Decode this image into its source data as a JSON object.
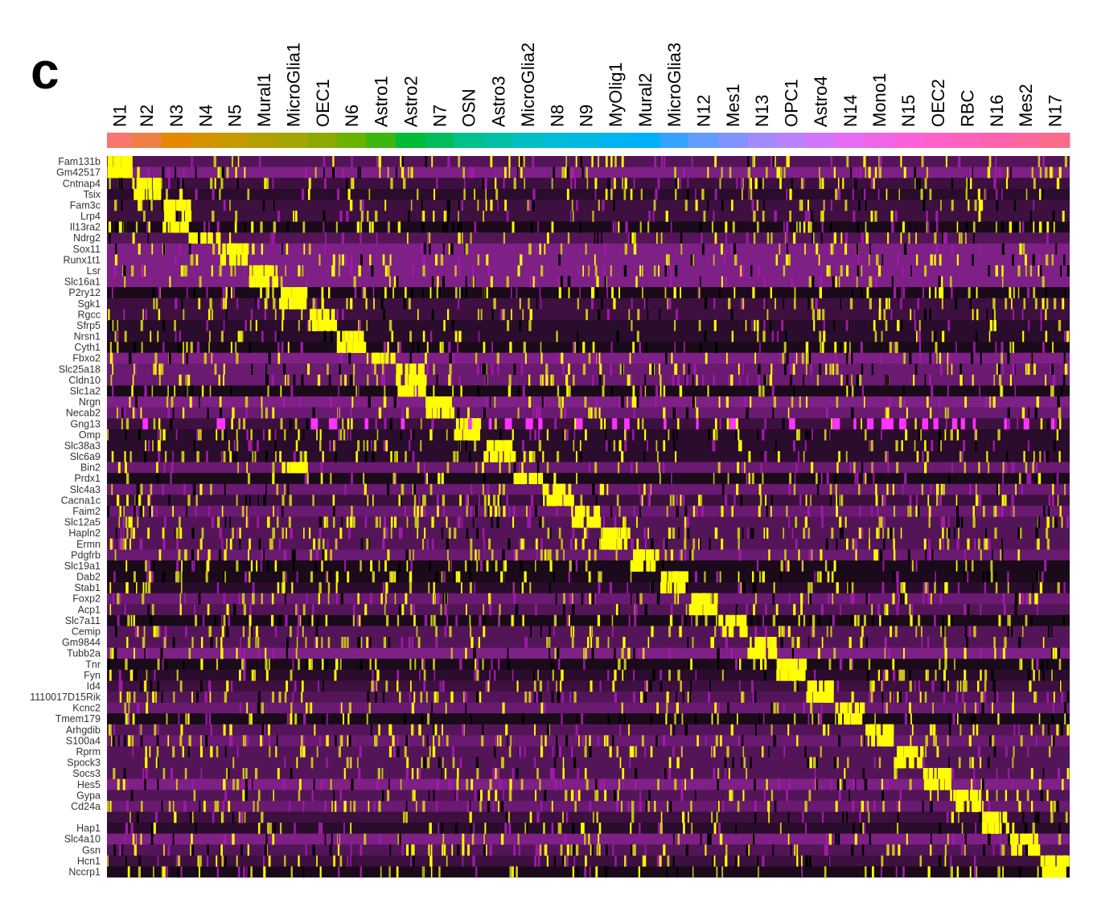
{
  "panel_label": "c",
  "chart_data": {
    "type": "heatmap",
    "title": "",
    "xlabel": "",
    "ylabel": "",
    "legend": "none",
    "colorscale": [
      "#000000",
      "#b018b0",
      "#ffff00"
    ],
    "categories": [
      "N1",
      "N2",
      "N3",
      "N4",
      "N5",
      "Mural1",
      "MicroGlia1",
      "OEC1",
      "N6",
      "Astro1",
      "Astro2",
      "N7",
      "OSN",
      "Astro3",
      "MicroGlia2",
      "N8",
      "N9",
      "MyOlig1",
      "Mural2",
      "MicroGlia3",
      "N12",
      "Mes1",
      "N13",
      "OPC1",
      "Astro4",
      "N14",
      "Mono1",
      "N15",
      "OEC2",
      "RBC",
      "N16",
      "Mes2",
      "N17"
    ],
    "category_colors": [
      "#f8766d",
      "#ef7f48",
      "#e58700",
      "#d49200",
      "#c49a00",
      "#b29f00",
      "#a3a500",
      "#8ba900",
      "#6bb100",
      "#3db70f",
      "#00ba38",
      "#00bd5c",
      "#00c08b",
      "#00c1a3",
      "#00bfc4",
      "#00bcd8",
      "#00b9e3",
      "#00b4f0",
      "#00b0f6",
      "#35a2ff",
      "#619cff",
      "#8194ff",
      "#a58aff",
      "#b983ff",
      "#d177fd",
      "#e76bf3",
      "#f066e8",
      "#fa62db",
      "#ff61c9",
      "#ff62bc",
      "#ff63b0",
      "#ff689f",
      "#fa6d8a"
    ],
    "category_widths": [
      31,
      37,
      37,
      37,
      36,
      37,
      37,
      36,
      37,
      37,
      37,
      36,
      37,
      37,
      37,
      36,
      37,
      37,
      37,
      36,
      37,
      37,
      36,
      37,
      37,
      37,
      36,
      37,
      37,
      37,
      36,
      37,
      37
    ],
    "genes": [
      {
        "name": "Fam131b",
        "label": true
      },
      {
        "name": "Gm42517",
        "label": true
      },
      {
        "name": "Cntnap4",
        "label": true
      },
      {
        "name": "Tsix",
        "label": true
      },
      {
        "name": "Fam3c",
        "label": true
      },
      {
        "name": "Lrp4",
        "label": true
      },
      {
        "name": "Il13ra2",
        "label": true
      },
      {
        "name": "Ndrg2",
        "label": true
      },
      {
        "name": "Sox11",
        "label": true
      },
      {
        "name": "Runx1t1",
        "label": true
      },
      {
        "name": "Lsr",
        "label": true
      },
      {
        "name": "Slc16a1",
        "label": true
      },
      {
        "name": "P2ry12",
        "label": true
      },
      {
        "name": "Sgk1",
        "label": true
      },
      {
        "name": "Rgcc",
        "label": true
      },
      {
        "name": "Sfrp5",
        "label": true
      },
      {
        "name": "Nrsn1",
        "label": true
      },
      {
        "name": "Cyth1",
        "label": true
      },
      {
        "name": "Fbxo2",
        "label": true
      },
      {
        "name": "Slc25a18",
        "label": true
      },
      {
        "name": "Cldn10",
        "label": true
      },
      {
        "name": "Slc1a2",
        "label": true
      },
      {
        "name": "Nrgn",
        "label": true
      },
      {
        "name": "Necab2",
        "label": true
      },
      {
        "name": "Gng13",
        "label": true
      },
      {
        "name": "Omp",
        "label": true
      },
      {
        "name": "Slc38a3",
        "label": true
      },
      {
        "name": "Slc6a9",
        "label": true
      },
      {
        "name": "Bin2",
        "label": true
      },
      {
        "name": "Prdx1",
        "label": true
      },
      {
        "name": "Slc4a3",
        "label": true
      },
      {
        "name": "Cacna1c",
        "label": true
      },
      {
        "name": "Faim2",
        "label": true
      },
      {
        "name": "Slc12a5",
        "label": true
      },
      {
        "name": "Hapln2",
        "label": true
      },
      {
        "name": "Ermn",
        "label": true
      },
      {
        "name": "Pdgfrb",
        "label": true
      },
      {
        "name": "Slc19a1",
        "label": true
      },
      {
        "name": "Dab2",
        "label": true
      },
      {
        "name": "Stab1",
        "label": true
      },
      {
        "name": "Foxp2",
        "label": true
      },
      {
        "name": "Acp1",
        "label": true
      },
      {
        "name": "Slc7a11",
        "label": true
      },
      {
        "name": "Cemip",
        "label": true
      },
      {
        "name": "Gm9844",
        "label": true
      },
      {
        "name": "Tubb2a",
        "label": true
      },
      {
        "name": "Tnr",
        "label": true
      },
      {
        "name": "Fyn",
        "label": true
      },
      {
        "name": "Id4",
        "label": true
      },
      {
        "name": "1110017D15Rik",
        "label": true
      },
      {
        "name": "Kcnc2",
        "label": true
      },
      {
        "name": "Tmem179",
        "label": true
      },
      {
        "name": "Arhgdib",
        "label": true
      },
      {
        "name": "S100a4",
        "label": true
      },
      {
        "name": "Rprm",
        "label": true
      },
      {
        "name": "Spock3",
        "label": true
      },
      {
        "name": "Socs3",
        "label": true
      },
      {
        "name": "Hes5",
        "label": true
      },
      {
        "name": "Gypa",
        "label": true
      },
      {
        "name": "Cd24a",
        "label": true
      },
      {
        "name": "",
        "label": false
      },
      {
        "name": "Hap1",
        "label": true
      },
      {
        "name": "Slc4a10",
        "label": true
      },
      {
        "name": "Gsn",
        "label": true
      },
      {
        "name": "Hcn1",
        "label": true
      },
      {
        "name": "Nccrp1",
        "label": true
      }
    ],
    "marker_blocks": [
      [
        0,
        0
      ],
      [
        1,
        0
      ],
      [
        2,
        1
      ],
      [
        3,
        1
      ],
      [
        4,
        2
      ],
      [
        5,
        2
      ],
      [
        6,
        2
      ],
      [
        7,
        3
      ],
      [
        8,
        4
      ],
      [
        9,
        4
      ],
      [
        10,
        5
      ],
      [
        11,
        5
      ],
      [
        12,
        6
      ],
      [
        13,
        6
      ],
      [
        14,
        7
      ],
      [
        15,
        7
      ],
      [
        16,
        8
      ],
      [
        17,
        8
      ],
      [
        18,
        9
      ],
      [
        19,
        10
      ],
      [
        20,
        10
      ],
      [
        21,
        10
      ],
      [
        22,
        11
      ],
      [
        23,
        11
      ],
      [
        24,
        12
      ],
      [
        25,
        12
      ],
      [
        26,
        13
      ],
      [
        27,
        13
      ],
      [
        28,
        6
      ],
      [
        29,
        14
      ],
      [
        30,
        15
      ],
      [
        31,
        15
      ],
      [
        32,
        16
      ],
      [
        33,
        16
      ],
      [
        34,
        17
      ],
      [
        35,
        17
      ],
      [
        36,
        18
      ],
      [
        37,
        18
      ],
      [
        38,
        19
      ],
      [
        39,
        19
      ],
      [
        40,
        20
      ],
      [
        41,
        20
      ],
      [
        42,
        21
      ],
      [
        43,
        21
      ],
      [
        44,
        22
      ],
      [
        45,
        22
      ],
      [
        46,
        23
      ],
      [
        47,
        23
      ],
      [
        48,
        24
      ],
      [
        49,
        24
      ],
      [
        50,
        25
      ],
      [
        51,
        25
      ],
      [
        52,
        26
      ],
      [
        53,
        26
      ],
      [
        54,
        27
      ],
      [
        55,
        27
      ],
      [
        56,
        28
      ],
      [
        57,
        28
      ],
      [
        58,
        29
      ],
      [
        59,
        29
      ],
      [
        60,
        30
      ],
      [
        61,
        30
      ],
      [
        62,
        31
      ],
      [
        63,
        31
      ],
      [
        64,
        32
      ],
      [
        65,
        32
      ]
    ]
  }
}
